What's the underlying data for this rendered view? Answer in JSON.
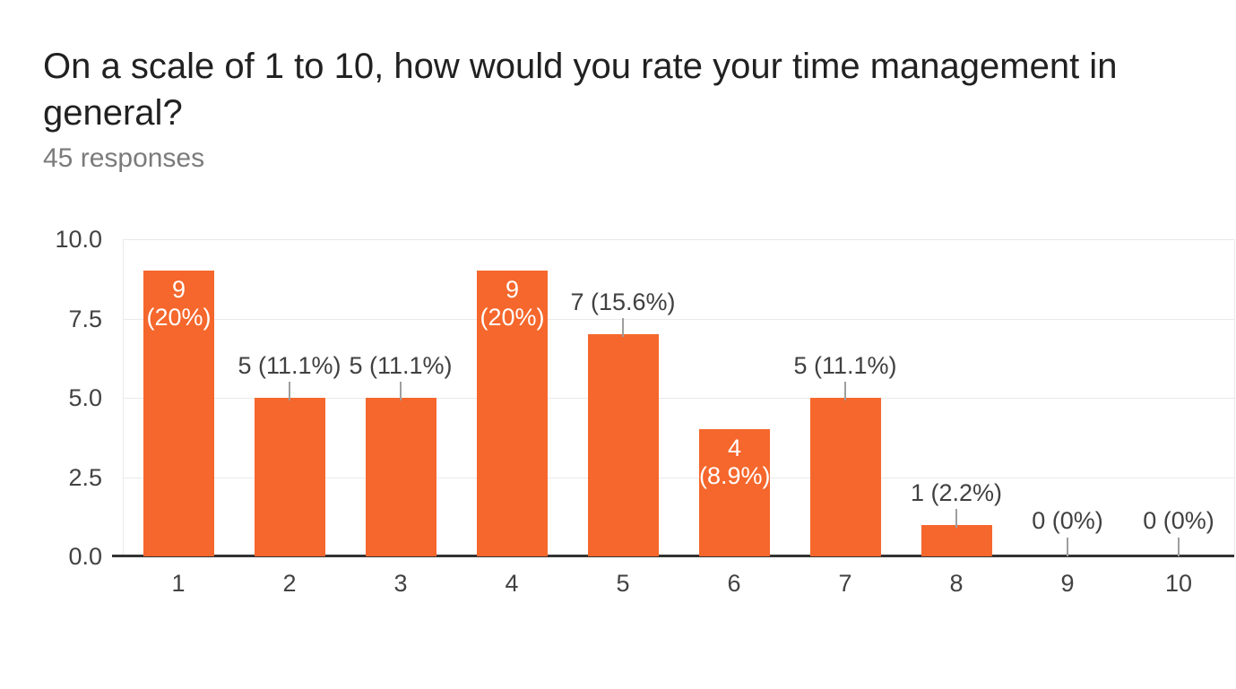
{
  "header": {
    "title_lines": [
      "On a scale of 1 to 10, how would you rate your time management in",
      "general?"
    ],
    "subtitle": "45 responses"
  },
  "chart_data": {
    "type": "bar",
    "title": "On a scale of 1 to 10, how would you rate your time management in general?",
    "subtitle": "45 responses",
    "categories": [
      "1",
      "2",
      "3",
      "4",
      "5",
      "6",
      "7",
      "8",
      "9",
      "10"
    ],
    "values": [
      9,
      5,
      5,
      9,
      7,
      4,
      5,
      1,
      0,
      0
    ],
    "annotations": [
      {
        "placement": "inside",
        "lines": [
          "9",
          "(20%)"
        ]
      },
      {
        "placement": "outside",
        "lines": [
          "5 (11.1%)"
        ]
      },
      {
        "placement": "outside",
        "lines": [
          "5 (11.1%)"
        ]
      },
      {
        "placement": "inside",
        "lines": [
          "9",
          "(20%)"
        ]
      },
      {
        "placement": "outside",
        "lines": [
          "7 (15.6%)"
        ]
      },
      {
        "placement": "inside",
        "lines": [
          "4",
          "(8.9%)"
        ]
      },
      {
        "placement": "outside",
        "lines": [
          "5 (11.1%)"
        ]
      },
      {
        "placement": "outside",
        "lines": [
          "1 (2.2%)"
        ]
      },
      {
        "placement": "outside",
        "lines": [
          "0 (0%)"
        ]
      },
      {
        "placement": "outside",
        "lines": [
          "0 (0%)"
        ]
      }
    ],
    "ylim": [
      0,
      10
    ],
    "yticks": [
      "0.0",
      "2.5",
      "5.0",
      "7.5",
      "10.0"
    ],
    "grid": true,
    "legend": "none",
    "colors": {
      "bar": "#f5672c",
      "annotation_outside_text": "#404040",
      "annotation_inside_text": "#ffffff",
      "stem": "#9e9e9e",
      "gridline": "#e9e9e9",
      "axis_line": "#333333",
      "axis_label": "#424242",
      "title": "#212121",
      "subtitle": "#7b7b7b"
    }
  }
}
